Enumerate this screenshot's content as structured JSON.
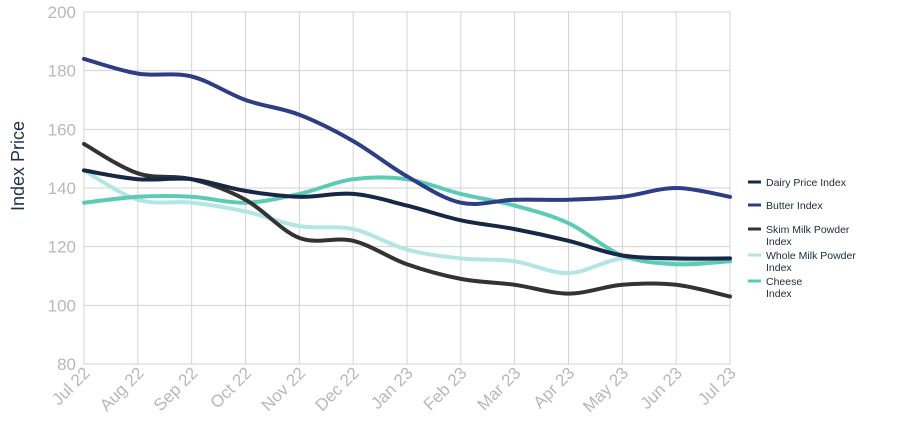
{
  "chart_data": {
    "type": "line",
    "title": "",
    "xlabel": "",
    "ylabel": "Index Price",
    "ylim": [
      80,
      200
    ],
    "yticks": [
      80,
      100,
      120,
      140,
      160,
      180,
      200
    ],
    "grid": true,
    "legend_position": "right",
    "categories": [
      "Jul 22",
      "Aug 22",
      "Sep 22",
      "Oct 22",
      "Nov 22",
      "Dec 22",
      "Jan 23",
      "Feb 23",
      "Mar 23",
      "Apr 23",
      "May 23",
      "Jun 23",
      "Jul 23"
    ],
    "series": [
      {
        "name": "Dairy Price Index",
        "color": "#162846",
        "values": [
          146,
          143,
          143,
          139,
          137,
          138,
          134,
          129,
          126,
          122,
          117,
          116,
          116
        ]
      },
      {
        "name": "Butter Index",
        "color": "#2d3e85",
        "values": [
          184,
          179,
          178,
          170,
          165,
          156,
          144,
          135,
          136,
          136,
          137,
          140,
          137
        ]
      },
      {
        "name": "Skim Milk Powder Index",
        "color": "#333333",
        "values": [
          155,
          145,
          143,
          136,
          123,
          122,
          114,
          109,
          107,
          104,
          107,
          107,
          103
        ]
      },
      {
        "name": "Whole Milk Powder Index",
        "color": "#b2e6e4",
        "values": [
          146,
          136,
          135,
          132,
          127,
          126,
          119,
          116,
          115,
          111,
          116,
          115,
          115
        ]
      },
      {
        "name": "Cheese Index",
        "color": "#5ccbb5",
        "values": [
          135,
          137,
          137,
          135,
          138,
          143,
          143,
          138,
          134,
          128,
          117,
          114,
          115
        ]
      }
    ],
    "legend_lines": [
      [
        "Dairy Price Index"
      ],
      [
        "Butter Index"
      ],
      [
        "Skim Milk Powder",
        "Index"
      ],
      [
        "Whole Milk Powder",
        "Index"
      ],
      [
        "Cheese",
        "Index"
      ]
    ]
  }
}
